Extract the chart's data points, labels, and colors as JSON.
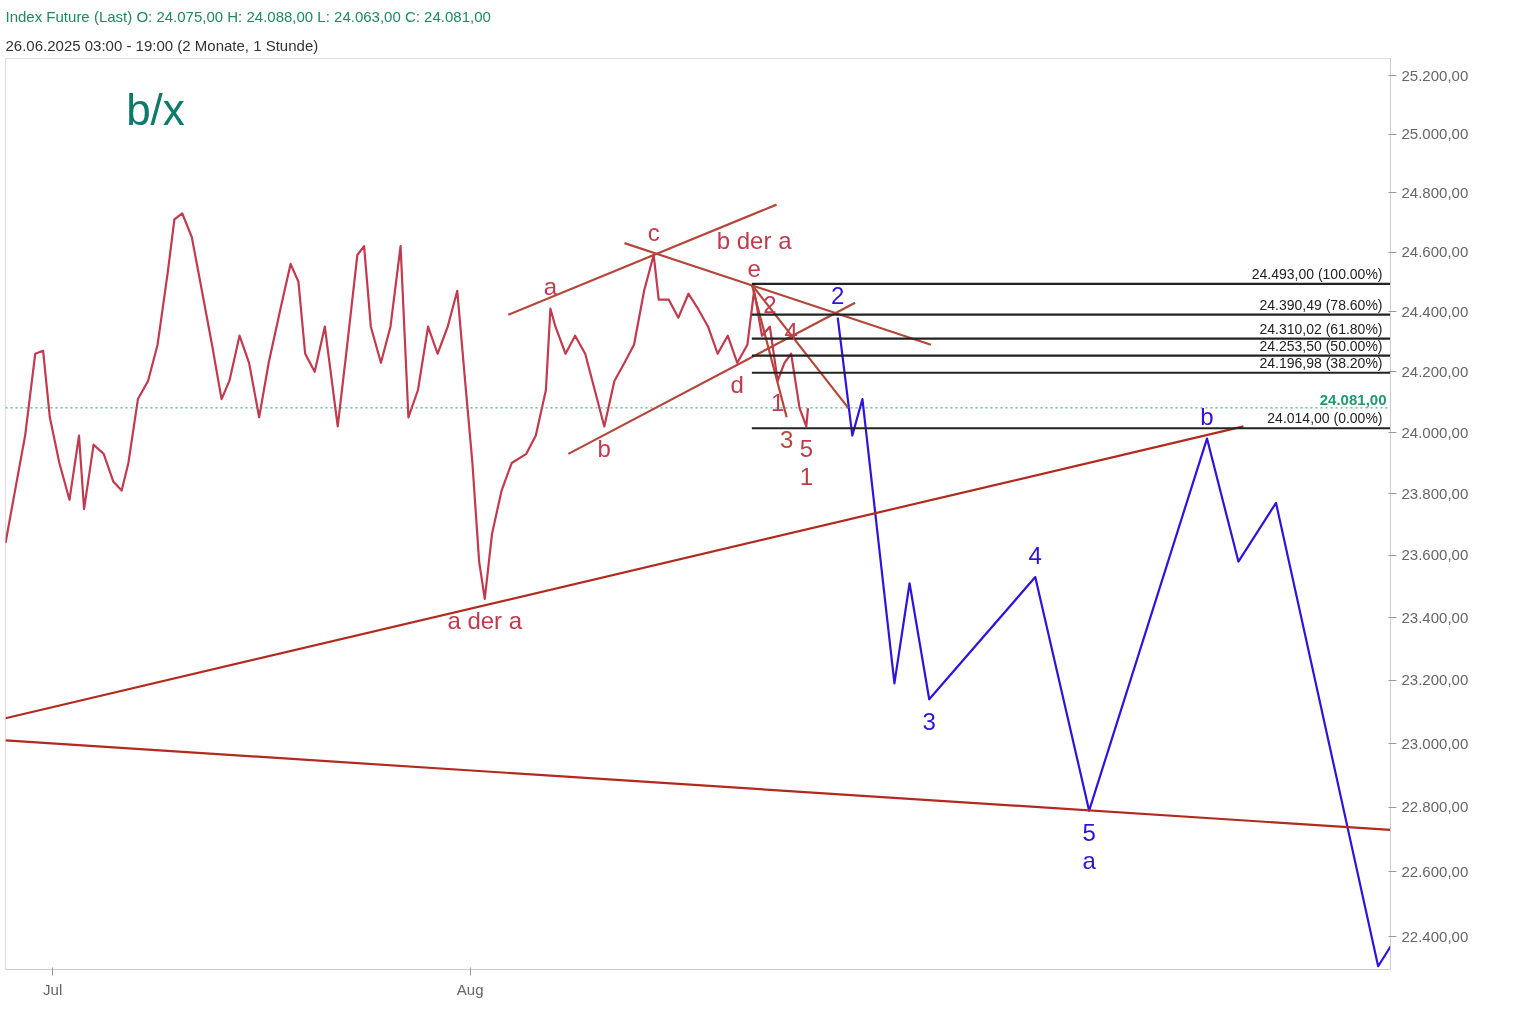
{
  "chart_data": {
    "type": "line",
    "title": "Index Future (Last)  O: 24.075,00  H: 24.088,00  L: 24.063,00  C: 24.081,00",
    "subtitle": "26.06.2025 03:00 - 19:00 (2 Monate, 1 Stunde)",
    "log": "y",
    "grid": false,
    "xlim": [
      "2025-06-27T12:00",
      "2025-10-08T08:00"
    ],
    "xticks": [
      {
        "value": "2025-07-01",
        "label": "Jul"
      },
      {
        "value": "2025-08-01",
        "label": "Aug"
      }
    ],
    "ylim": [
      22300,
      25260
    ],
    "yticks": [
      {
        "value": 22400,
        "label": "22.400,00"
      },
      {
        "value": 22600,
        "label": "22.600,00"
      },
      {
        "value": 22800,
        "label": "22.800,00"
      },
      {
        "value": 23000,
        "label": "23.000,00"
      },
      {
        "value": 23200,
        "label": "23.200,00"
      },
      {
        "value": 23400,
        "label": "23.400,00"
      },
      {
        "value": 23600,
        "label": "23.600,00"
      },
      {
        "value": 23800,
        "label": "23.800,00"
      },
      {
        "value": 24000,
        "label": "24.000,00"
      },
      {
        "value": 24200,
        "label": "24.200,00"
      },
      {
        "value": 24400,
        "label": "24.400,00"
      },
      {
        "value": 24600,
        "label": "24.600,00"
      },
      {
        "value": 24800,
        "label": "24.800,00"
      },
      {
        "value": 25000,
        "label": "25.000,00"
      },
      {
        "value": 25200,
        "label": "25.200,00"
      }
    ],
    "series": [
      {
        "color": "#c23a4e",
        "x": [
          "2025-06-27T12:00",
          "2025-06-28T05:00",
          "2025-06-28T23:00",
          "2025-06-29T17:00",
          "2025-06-30T07:00",
          "2025-06-30T19:00",
          "2025-07-01T12:00",
          "2025-07-02T06:00",
          "2025-07-02T23:00",
          "2025-07-03T08:00",
          "2025-07-04T01:00",
          "2025-07-04T19:00",
          "2025-07-05T12:00",
          "2025-07-06T03:00",
          "2025-07-06T15:00",
          "2025-07-07T08:00",
          "2025-07-08T02:00",
          "2025-07-08T19:00",
          "2025-07-09T13:00",
          "2025-07-10T01:00",
          "2025-07-10T15:00",
          "2025-07-11T08:00",
          "2025-07-12T02:00",
          "2025-07-12T20:00",
          "2025-07-13T13:00",
          "2025-07-14T03:00",
          "2025-07-14T21:00",
          "2025-07-15T14:00",
          "2025-07-16T08:00",
          "2025-07-17T01:00",
          "2025-07-17T22:00",
          "2025-07-18T16:00",
          "2025-07-19T06:00",
          "2025-07-19T18:00",
          "2025-07-20T11:00",
          "2025-07-21T05:00",
          "2025-07-22T04:00",
          "2025-07-22T21:00",
          "2025-07-23T15:00",
          "2025-07-24T03:00",
          "2025-07-24T15:00",
          "2025-07-25T09:00",
          "2025-07-26T02:00",
          "2025-07-26T20:00",
          "2025-07-27T10:00",
          "2025-07-28T03:00",
          "2025-07-28T21:00",
          "2025-07-29T14:00",
          "2025-07-30T08:00",
          "2025-07-31T01:00",
          "2025-07-31T15:00",
          "2025-08-01T04:00",
          "2025-08-01T16:00",
          "2025-08-02T02:00",
          "2025-08-02T15:00",
          "2025-08-03T08:00",
          "2025-08-04T02:00",
          "2025-08-05T04:00",
          "2025-08-05T21:00",
          "2025-08-06T15:00",
          "2025-08-06T23:00",
          "2025-08-07T08:00",
          "2025-08-08T02:00",
          "2025-08-08T19:00",
          "2025-08-09T13:00",
          "2025-08-10T06:00",
          "2025-08-10T23:00",
          "2025-08-11T17:00",
          "2025-08-12T11:00",
          "2025-08-13T04:00",
          "2025-08-13T22:00",
          "2025-08-14T15:00",
          "2025-08-15T00:00",
          "2025-08-15T18:00",
          "2025-08-16T11:00",
          "2025-08-17T05:00",
          "2025-08-17T22:00",
          "2025-08-18T16:00",
          "2025-08-19T09:00",
          "2025-08-20T03:00",
          "2025-08-20T20:00",
          "2025-08-21T14:00",
          "2025-08-22T02:00",
          "2025-08-22T16:00",
          "2025-08-23T06:00",
          "2025-08-23T20:00",
          "2025-08-24T08:00",
          "2025-08-24T20:00",
          "2025-08-25T11:00",
          "2025-08-25T23:00",
          "2025-08-26T02:00"
        ],
        "values": [
          23640,
          23810,
          23990,
          24260,
          24270,
          24050,
          23900,
          23780,
          23990,
          23750,
          23960,
          23930,
          23840,
          23810,
          23900,
          24110,
          24170,
          24290,
          24530,
          24710,
          24730,
          24650,
          24470,
          24290,
          24110,
          24170,
          24320,
          24230,
          24050,
          24230,
          24410,
          24560,
          24500,
          24260,
          24200,
          24350,
          24020,
          24290,
          24590,
          24620,
          24350,
          24230,
          24350,
          24620,
          24050,
          24140,
          24350,
          24260,
          24350,
          24470,
          24170,
          23900,
          23580,
          23460,
          23670,
          23810,
          23900,
          23930,
          23990,
          24140,
          24410,
          24350,
          24260,
          24320,
          24260,
          24140,
          24020,
          24170,
          24230,
          24290,
          24470,
          24590,
          24440,
          24440,
          24380,
          24460,
          24410,
          24350,
          24260,
          24320,
          24230,
          24290,
          24470,
          24320,
          24350,
          24170,
          24230,
          24260,
          24080,
          24020,
          24080
        ]
      },
      {
        "color": "#3311dd",
        "x": [
          "2025-08-28T07:00",
          "2025-08-29T09:00",
          "2025-08-30T03:00",
          "2025-09-01T12:00",
          "2025-09-02T15:00",
          "2025-09-04T02:00",
          "2025-09-11T23:00",
          "2025-09-15T23:00",
          "2025-09-24T17:00",
          "2025-09-27T01:00",
          "2025-09-29T20:00",
          "2025-10-07T10:00",
          "2025-10-08T08:00"
        ],
        "values": [
          24380,
          23990,
          24110,
          23190,
          23510,
          23140,
          23530,
          22790,
          23980,
          23580,
          23770,
          22310,
          22370
        ]
      },
      {
        "color": "#b22a1e",
        "x": [
          "2025-06-27T12:00",
          "2025-09-27T10:00"
        ],
        "values": [
          23080,
          24020
        ]
      },
      {
        "color": "#b22a1e",
        "x": [
          "2025-06-27T12:00",
          "2025-10-08T08:00"
        ],
        "values": [
          23010,
          22730
        ]
      },
      {
        "color": "#b5473a",
        "x": [
          "2025-08-03T20:00",
          "2025-08-23T18:00"
        ],
        "values": [
          24390,
          24760
        ]
      },
      {
        "color": "#b5473a",
        "x": [
          "2025-08-08T07:00",
          "2025-08-29T14:00"
        ],
        "values": [
          23930,
          24430
        ]
      },
      {
        "color": "#b5473a",
        "x": [
          "2025-08-12T11:00",
          "2025-09-04T05:00"
        ],
        "values": [
          24630,
          24290
        ]
      },
      {
        "color": "#b5473a",
        "x": [
          "2025-08-21T22:00",
          "2025-08-29T02:00"
        ],
        "values": [
          24490,
          24080
        ]
      },
      {
        "color": "#b5473a",
        "x": [
          "2025-08-21T22:00",
          "2025-08-24T12:00"
        ],
        "values": [
          24490,
          24050
        ]
      },
      {
        "name": "24.493,00 (100.00%)",
        "color": "#222222",
        "x": [
          "2025-08-21T22:00",
          "2025-10-08T08:00"
        ],
        "values": [
          24493,
          24493
        ]
      },
      {
        "name": "24.390,49 (78.60%)",
        "color": "#222222",
        "x": [
          "2025-08-21T22:00",
          "2025-10-08T08:00"
        ],
        "values": [
          24390.49,
          24390.49
        ]
      },
      {
        "name": "24.310,02 (61.80%)",
        "color": "#222222",
        "x": [
          "2025-08-21T22:00",
          "2025-10-08T08:00"
        ],
        "values": [
          24310.02,
          24310.02
        ]
      },
      {
        "name": "24.253,50 (50.00%)",
        "color": "#222222",
        "x": [
          "2025-08-21T22:00",
          "2025-10-08T08:00"
        ],
        "values": [
          24253.5,
          24253.5
        ]
      },
      {
        "name": "24.196,98 (38.20%)",
        "color": "#222222",
        "x": [
          "2025-08-21T22:00",
          "2025-10-08T08:00"
        ],
        "values": [
          24196.98,
          24196.98
        ]
      },
      {
        "name": "24.014,00 (0.00%)",
        "color": "#222222",
        "x": [
          "2025-08-21T22:00",
          "2025-10-08T08:00"
        ],
        "values": [
          24014,
          24014
        ]
      }
    ],
    "ref_lines": [
      {
        "axis": "y",
        "value": 24081,
        "label": "24.081,00",
        "color": "#1e9a6e"
      }
    ],
    "annotations": [
      "b/x",
      {
        "text": "a",
        "x": "2025-08-06T23:00",
        "y": 24410
      },
      {
        "text": "c",
        "x": "2025-08-14T15:00",
        "y": 24590
      },
      {
        "text": "e",
        "x": "2025-08-22T02:00",
        "y": 24470
      },
      {
        "text": "b der a",
        "x": "2025-08-22T02:00",
        "y": 24470
      },
      {
        "text": "d",
        "x": "2025-08-20T20:00",
        "y": 24230
      },
      {
        "text": "b",
        "x": "2025-08-10T23:00",
        "y": 24020
      },
      {
        "text": "2",
        "x": "2025-08-23T06:00",
        "y": 24350
      },
      {
        "text": "4",
        "x": "2025-08-24T20:00",
        "y": 24260
      },
      {
        "text": "1",
        "x": "2025-08-23T20:00",
        "y": 24170
      },
      {
        "text": "3",
        "x": "2025-08-24T12:00",
        "y": 24050
      },
      {
        "text": "5",
        "x": "2025-08-25T23:00",
        "y": 24020
      },
      {
        "text": "1",
        "x": "2025-08-25T23:00",
        "y": 24020
      },
      {
        "text": "2",
        "x": "2025-08-28T07:00",
        "y": 24380
      },
      {
        "text": "a der a",
        "x": "2025-08-02T02:00",
        "y": 23460
      },
      {
        "text": "b",
        "x": "2025-09-24T17:00",
        "y": 23980
      },
      {
        "text": "4",
        "x": "2025-09-11T23:00",
        "y": 23530
      },
      {
        "text": "3",
        "x": "2025-09-04T02:00",
        "y": 23140
      },
      {
        "text": "5",
        "x": "2025-09-15T23:00",
        "y": 22790
      },
      {
        "text": "a",
        "x": "2025-09-15T23:00",
        "y": 22790
      }
    ]
  }
}
